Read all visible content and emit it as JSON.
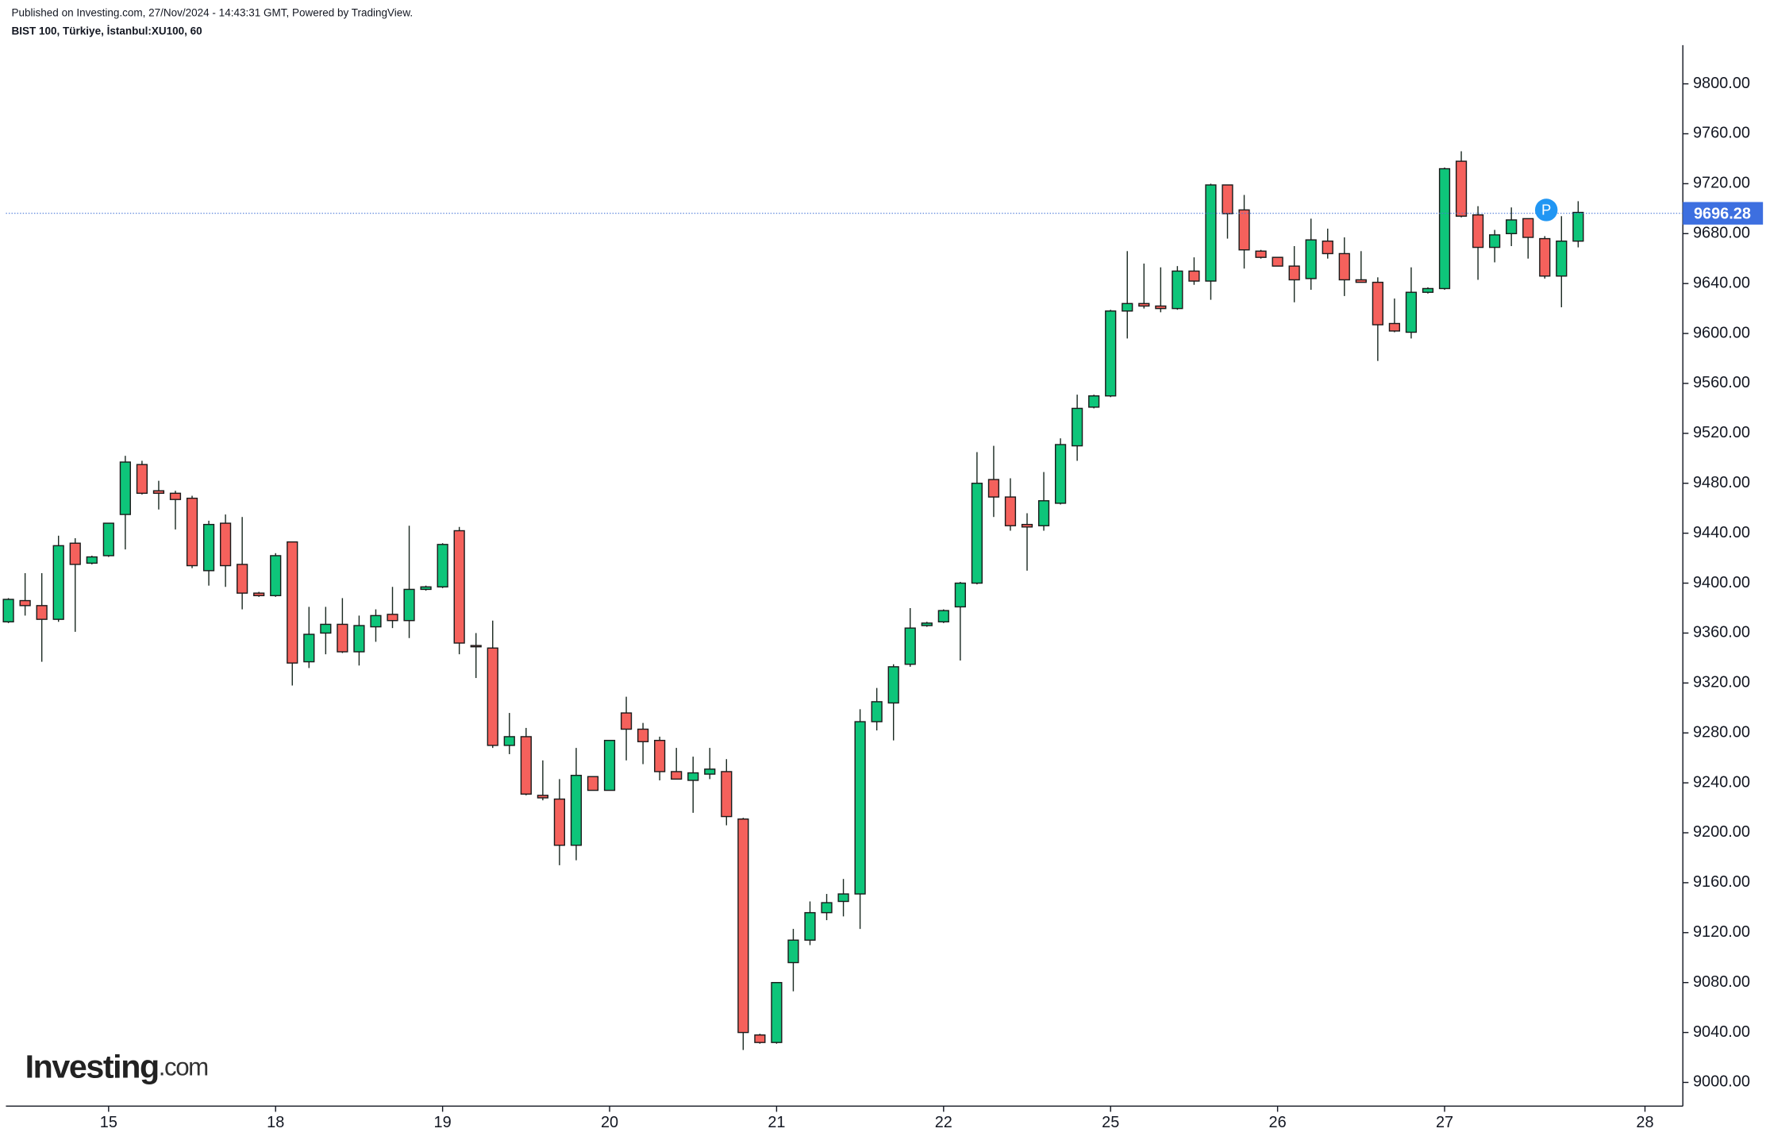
{
  "chart_data": {
    "type": "candlestick",
    "header": [
      "Published on Investing.com, 27/Nov/2024 - 14:43:31 GMT, Powered by TradingView.",
      "BIST 100, Türkiye, İstanbul:XU100, 60"
    ],
    "logo": {
      "name": "Investing",
      "suffix": ".com"
    },
    "marker": "P",
    "last_price": 9696.28,
    "up_color": "#0ec57a",
    "down_color": "#f5615c",
    "open": [
      9369,
      9386,
      9382,
      9371,
      9432,
      9416,
      9422,
      9455,
      9495,
      9474,
      9472,
      9468,
      9410,
      9448,
      9415,
      9392,
      9390,
      9433,
      9337,
      9360,
      9367,
      9345,
      9365,
      9375,
      9370,
      9395,
      9397,
      9442,
      9350,
      9348,
      9270,
      9277,
      9230,
      9227,
      9190,
      9245,
      9234,
      9296,
      9283,
      9274,
      9249,
      9242,
      9247,
      9249,
      9211,
      9038,
      9032,
      9096,
      9114,
      9136,
      9145,
      9151,
      9289,
      9304,
      9335,
      9366,
      9369,
      9381,
      9400,
      9483,
      9469,
      9447,
      9446,
      9464,
      9510,
      9541,
      9550,
      9618,
      9624,
      9622,
      9620,
      9650,
      9642,
      9719,
      9699,
      9666,
      9661,
      9654,
      9644,
      9674,
      9664,
      9643,
      9641,
      9608,
      9601,
      9633,
      9636,
      9738,
      9695,
      9669,
      9680,
      9692,
      9676,
      9646,
      9674
    ],
    "high": [
      9388,
      9408,
      9408,
      9438,
      9436,
      9422,
      9448,
      9502,
      9498,
      9482,
      9474,
      9470,
      9450,
      9455,
      9453,
      9393,
      9424,
      9433,
      9381,
      9381,
      9388,
      9374,
      9379,
      9397,
      9446,
      9398,
      9432,
      9445,
      9360,
      9370,
      9296,
      9284,
      9258,
      9243,
      9268,
      9245,
      9274,
      9309,
      9288,
      9277,
      9268,
      9261,
      9268,
      9259,
      9212,
      9039,
      9080,
      9123,
      9145,
      9151,
      9163,
      9299,
      9316,
      9335,
      9380,
      9369,
      9379,
      9401,
      9505,
      9510,
      9484,
      9456,
      9489,
      9516,
      9551,
      9551,
      9619,
      9666,
      9656,
      9653,
      9654,
      9661,
      9720,
      9719,
      9711,
      9667,
      9661,
      9670,
      9692,
      9684,
      9677,
      9666,
      9645,
      9628,
      9653,
      9637,
      9733,
      9746,
      9702,
      9683,
      9701,
      9692,
      9678,
      9694,
      9706
    ],
    "low": [
      9368,
      9374,
      9337,
      9369,
      9361,
      9415,
      9421,
      9427,
      9471,
      9459,
      9443,
      9412,
      9398,
      9397,
      9379,
      9389,
      9389,
      9318,
      9332,
      9343,
      9344,
      9334,
      9353,
      9364,
      9356,
      9394,
      9396,
      9343,
      9324,
      9268,
      9263,
      9230,
      9226,
      9174,
      9178,
      9234,
      9234,
      9258,
      9255,
      9242,
      9243,
      9216,
      9243,
      9206,
      9026,
      9031,
      9031,
      9073,
      9110,
      9130,
      9133,
      9123,
      9282,
      9274,
      9333,
      9365,
      9368,
      9338,
      9399,
      9453,
      9442,
      9410,
      9442,
      9463,
      9498,
      9540,
      9549,
      9596,
      9620,
      9617,
      9619,
      9639,
      9627,
      9676,
      9652,
      9660,
      9654,
      9625,
      9635,
      9660,
      9630,
      9641,
      9578,
      9601,
      9596,
      9632,
      9635,
      9693,
      9643,
      9657,
      9670,
      9660,
      9644,
      9621,
      9669
    ],
    "close": [
      9387,
      9382,
      9371,
      9430,
      9415,
      9421,
      9448,
      9497,
      9472,
      9472,
      9467,
      9414,
      9447,
      9414,
      9392,
      9390,
      9422,
      9336,
      9359,
      9367,
      9345,
      9366,
      9374,
      9370,
      9395,
      9397,
      9431,
      9352,
      9349,
      9270,
      9277,
      9231,
      9228,
      9190,
      9246,
      9234,
      9274,
      9283,
      9273,
      9249,
      9243,
      9248,
      9251,
      9213,
      9040,
      9032,
      9080,
      9114,
      9136,
      9144,
      9151,
      9289,
      9305,
      9333,
      9364,
      9368,
      9378,
      9400,
      9480,
      9469,
      9446,
      9445,
      9466,
      9511,
      9540,
      9550,
      9618,
      9624,
      9622,
      9620,
      9650,
      9642,
      9719,
      9696,
      9667,
      9661,
      9654,
      9643,
      9675,
      9664,
      9643,
      9641,
      9607,
      9602,
      9633,
      9636,
      9732,
      9694,
      9669,
      9679,
      9691,
      9677,
      9646,
      9674,
      9697
    ],
    "xlim": [
      -0.15,
      100.2
    ],
    "xticks": [
      {
        "value": 6,
        "label": "15"
      },
      {
        "value": 16,
        "label": "18"
      },
      {
        "value": 26,
        "label": "19"
      },
      {
        "value": 36,
        "label": "20"
      },
      {
        "value": 46,
        "label": "21"
      },
      {
        "value": 56,
        "label": "22"
      },
      {
        "value": 66,
        "label": "25"
      },
      {
        "value": 76,
        "label": "26"
      },
      {
        "value": 86,
        "label": "27"
      },
      {
        "value": 98,
        "label": "28"
      }
    ],
    "ylim": [
      8981,
      9831
    ],
    "yticks": [
      {
        "value": 9000,
        "label": "9000.00"
      },
      {
        "value": 9040,
        "label": "9040.00"
      },
      {
        "value": 9080,
        "label": "9080.00"
      },
      {
        "value": 9120,
        "label": "9120.00"
      },
      {
        "value": 9160,
        "label": "9160.00"
      },
      {
        "value": 9200,
        "label": "9200.00"
      },
      {
        "value": 9240,
        "label": "9240.00"
      },
      {
        "value": 9280,
        "label": "9280.00"
      },
      {
        "value": 9320,
        "label": "9320.00"
      },
      {
        "value": 9360,
        "label": "9360.00"
      },
      {
        "value": 9400,
        "label": "9400.00"
      },
      {
        "value": 9440,
        "label": "9440.00"
      },
      {
        "value": 9480,
        "label": "9480.00"
      },
      {
        "value": 9520,
        "label": "9520.00"
      },
      {
        "value": 9560,
        "label": "9560.00"
      },
      {
        "value": 9600,
        "label": "9600.00"
      },
      {
        "value": 9640,
        "label": "9640.00"
      },
      {
        "value": 9680,
        "label": "9680.00"
      },
      {
        "value": 9720,
        "label": "9720.00"
      },
      {
        "value": 9760,
        "label": "9760.00"
      },
      {
        "value": 9800,
        "label": "9800.00"
      }
    ]
  }
}
